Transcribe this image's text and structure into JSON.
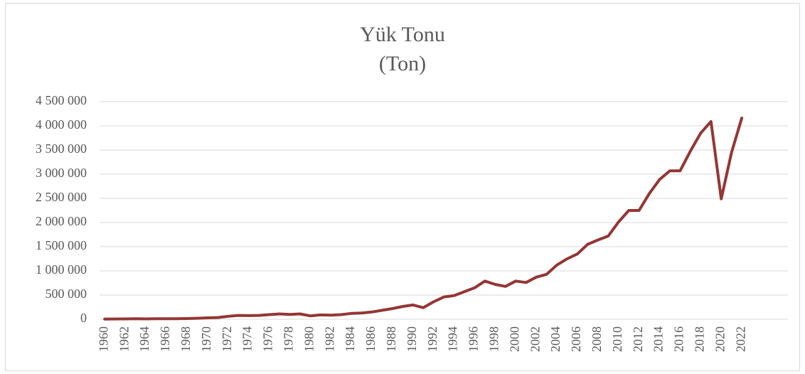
{
  "chart_data": {
    "type": "line",
    "title": "Yük Tonu",
    "subtitle": "(Ton)",
    "categories": [
      "1960",
      null,
      "1962",
      null,
      "1964",
      null,
      "1966",
      null,
      "1968",
      null,
      "1970",
      null,
      "1972",
      null,
      "1974",
      null,
      "1976",
      null,
      "1978",
      null,
      "1980",
      null,
      "1982",
      null,
      "1984",
      null,
      "1986",
      null,
      "1988",
      null,
      "1990",
      null,
      "1992",
      null,
      "1994",
      null,
      "1996",
      null,
      "1998",
      null,
      "2000",
      null,
      "2002",
      null,
      "2004",
      null,
      "2006",
      null,
      "2008",
      null,
      "2010",
      null,
      "2012",
      null,
      "2014",
      null,
      "2016",
      null,
      "2018",
      null,
      "2020",
      null,
      "2022"
    ],
    "series": [
      {
        "color": "#943634",
        "values": [
          5000,
          6000,
          8000,
          10000,
          8000,
          10000,
          12000,
          12000,
          15000,
          20000,
          30000,
          35000,
          60000,
          80000,
          75000,
          80000,
          95000,
          110000,
          100000,
          110000,
          70000,
          90000,
          85000,
          95000,
          120000,
          130000,
          150000,
          185000,
          220000,
          265000,
          295000,
          240000,
          360000,
          460000,
          490000,
          570000,
          650000,
          790000,
          720000,
          680000,
          790000,
          760000,
          870000,
          930000,
          1120000,
          1250000,
          1350000,
          1550000,
          1640000,
          1720000,
          2010000,
          2250000,
          2250000,
          2600000,
          2890000,
          3070000,
          3070000,
          3480000,
          3850000,
          4090000,
          2490000,
          3450000,
          4160000
        ]
      }
    ],
    "ylim": [
      0,
      4500000
    ],
    "yticks": [
      0,
      {
        "value": 500000,
        "label": "500 000"
      },
      {
        "value": 1000000,
        "label": "1 000 000"
      },
      {
        "value": 1500000,
        "label": "1 500 000"
      },
      {
        "value": 2000000,
        "label": "2 000 000"
      },
      {
        "value": 2500000,
        "label": "2 500 000"
      },
      {
        "value": 3000000,
        "label": "3 000 000"
      },
      {
        "value": 3500000,
        "label": "3 500 000"
      },
      {
        "value": 4000000,
        "label": "4 000 000"
      },
      {
        "value": 4500000,
        "label": "4 500 000"
      }
    ],
    "grid": true
  }
}
